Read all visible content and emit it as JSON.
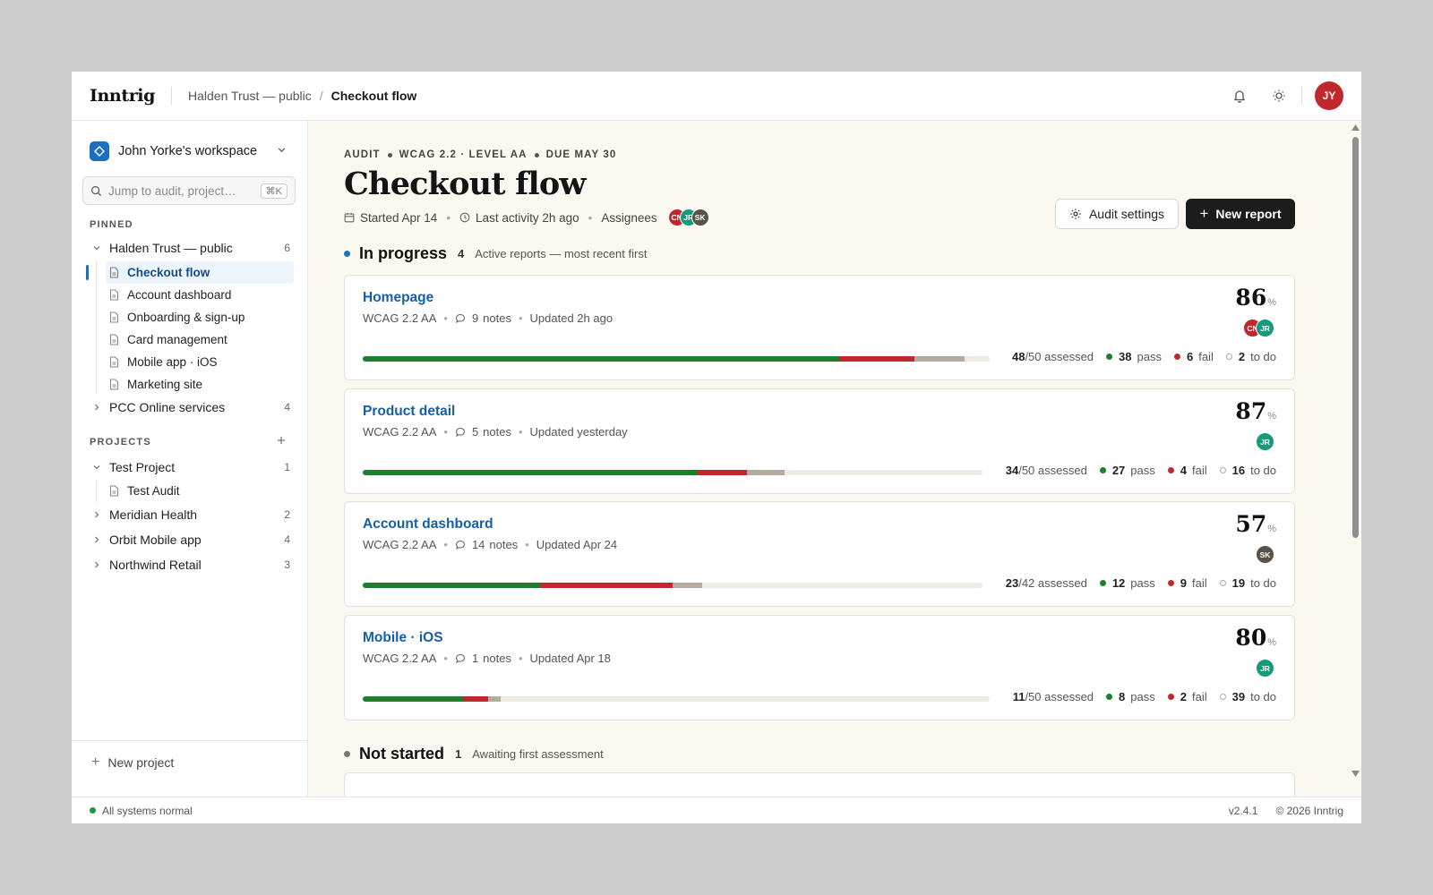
{
  "app": {
    "logo": "Inntrig"
  },
  "breadcrumb": {
    "workspace": "Halden Trust — public",
    "separator": "/",
    "current": "Checkout flow"
  },
  "user": {
    "initials": "JY",
    "color": "#c0282d"
  },
  "sidebar": {
    "workspace_name": "John Yorke's workspace",
    "search_placeholder": "Jump to audit, project…",
    "search_shortcut": "⌘K",
    "pinned_label": "PINNED",
    "pinned": [
      {
        "label": "Halden Trust — public",
        "count": "6",
        "expanded": true,
        "children": [
          "Checkout flow",
          "Account dashboard",
          "Onboarding & sign-up",
          "Card management",
          "Mobile app · iOS",
          "Marketing site"
        ]
      },
      {
        "label": "PCC Online services",
        "count": "4",
        "expanded": false
      }
    ],
    "projects_label": "PROJECTS",
    "projects": [
      {
        "label": "Test Project",
        "count": "1",
        "expanded": true,
        "children": [
          "Test Audit"
        ]
      },
      {
        "label": "Meridian Health",
        "count": "2",
        "expanded": false
      },
      {
        "label": "Orbit Mobile app",
        "count": "4",
        "expanded": false
      },
      {
        "label": "Northwind Retail",
        "count": "3",
        "expanded": false
      }
    ],
    "new_project": "New project"
  },
  "status": {
    "system": "All systems normal",
    "version": "v2.4.1",
    "copyright": "© 2026 Inntrig"
  },
  "audit": {
    "eyebrow": [
      "AUDIT",
      "WCAG 2.2 · LEVEL AA",
      "DUE MAY 30"
    ],
    "title": "Checkout flow",
    "started": "Started Apr 14",
    "last_activity": "Last activity 2h ago",
    "assignees_label": "Assignees",
    "assignees": [
      {
        "initials": "CN",
        "color": "#c0282d"
      },
      {
        "initials": "JR",
        "color": "#159a7c"
      },
      {
        "initials": "SK",
        "color": "#5a5249"
      }
    ],
    "settings_button": "Audit settings",
    "new_report_button": "New report"
  },
  "sections": {
    "in_progress": {
      "title": "In progress",
      "count": "4",
      "subtitle": "Active reports — most recent first"
    },
    "not_started": {
      "title": "Not started",
      "count": "1",
      "subtitle": "Awaiting first assessment"
    }
  },
  "colors": {
    "pass": "#1b7f2e",
    "fail": "#c0282d",
    "todo": "#b3aba0",
    "accent": "#1b6fc0",
    "link": "#165fa8"
  },
  "reports": [
    {
      "title": "Homepage",
      "standard": "WCAG 2.2 AA",
      "notes": "9",
      "notes_label": "notes",
      "updated": "Updated 2h ago",
      "score": "86",
      "assessed": "48",
      "total": "/50 assessed",
      "pass": "38",
      "fail": "6",
      "todo": "2",
      "avatars": [
        {
          "initials": "CN",
          "color": "#c0282d"
        },
        {
          "initials": "JR",
          "color": "#159a7c"
        }
      ],
      "progress": {
        "pass": 0.76,
        "fail": 0.12,
        "todo": 0.08
      }
    },
    {
      "title": "Product detail",
      "standard": "WCAG 2.2 AA",
      "notes": "5",
      "notes_label": "notes",
      "updated": "Updated yesterday",
      "score": "87",
      "assessed": "34",
      "total": "/50 assessed",
      "pass": "27",
      "fail": "4",
      "todo": "16",
      "avatars": [
        {
          "initials": "JR",
          "color": "#159a7c"
        }
      ],
      "progress": {
        "pass": 0.54,
        "fail": 0.08,
        "todo": 0.06
      }
    },
    {
      "title": "Account dashboard",
      "standard": "WCAG 2.2 AA",
      "notes": "14",
      "notes_label": "notes",
      "updated": "Updated Apr 24",
      "score": "57",
      "assessed": "23",
      "total": "/42 assessed",
      "pass": "12",
      "fail": "9",
      "todo": "19",
      "avatars": [
        {
          "initials": "SK",
          "color": "#5a5249"
        }
      ],
      "progress": {
        "pass": 0.286,
        "fail": 0.214,
        "todo": 0.048
      }
    },
    {
      "title": "Mobile · iOS",
      "standard": "WCAG 2.2 AA",
      "notes": "1",
      "notes_label": "notes",
      "updated": "Updated Apr 18",
      "score": "80",
      "assessed": "11",
      "total": "/50 assessed",
      "pass": "8",
      "fail": "2",
      "todo": "39",
      "avatars": [
        {
          "initials": "JR",
          "color": "#159a7c"
        }
      ],
      "progress": {
        "pass": 0.16,
        "fail": 0.04,
        "todo": 0.02
      }
    }
  ]
}
